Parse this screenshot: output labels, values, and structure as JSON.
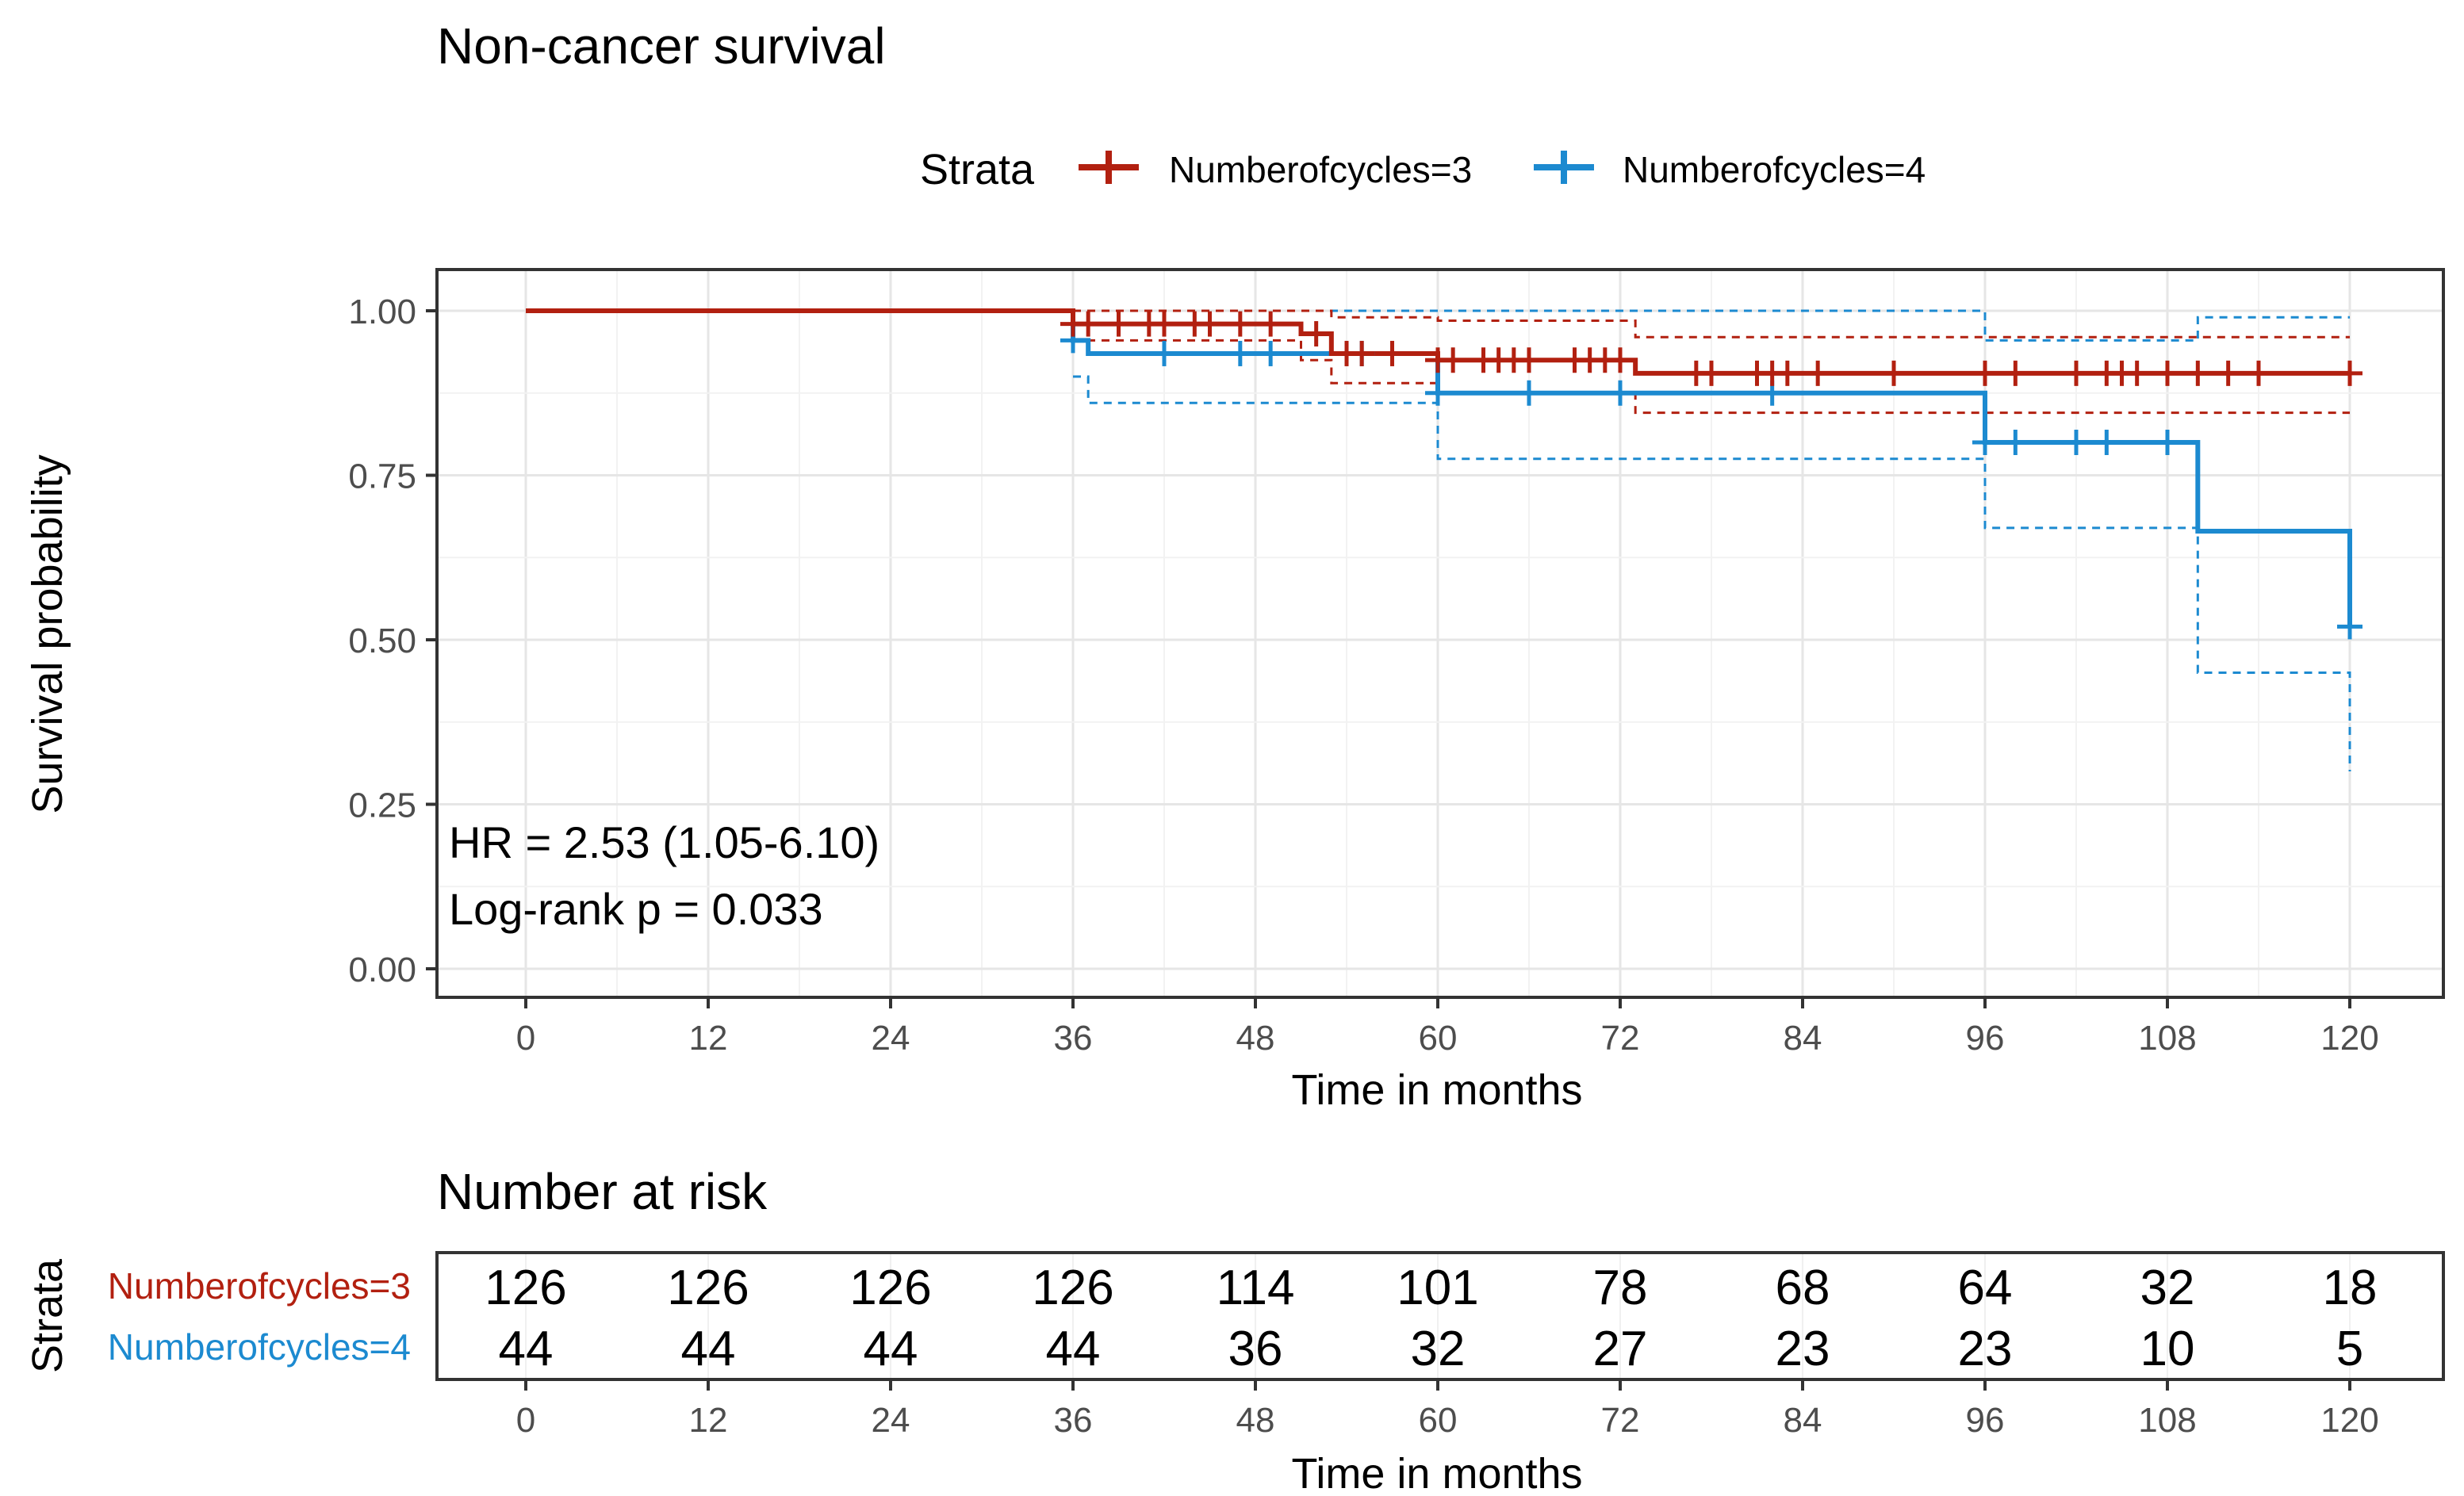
{
  "title": "Non-cancer survival",
  "legend": {
    "title": "Strata",
    "entries": [
      "Numberofcycles=3",
      "Numberofcycles=4"
    ]
  },
  "colors": {
    "cycles3": "#b22010",
    "cycles4": "#1c8ad0"
  },
  "annotations": {
    "hr": "HR = 2.53 (1.05-6.10)",
    "logrank": "Log-rank p = 0.033"
  },
  "chart_data": {
    "type": "line",
    "subtype": "kaplan-meier step curve with 95% CI and censor marks",
    "title": "Non-cancer survival",
    "xlabel": "Time in months",
    "ylabel": "Survival probability",
    "xlim": [
      0,
      120
    ],
    "ylim": [
      0,
      1
    ],
    "xticks": [
      0,
      12,
      24,
      36,
      48,
      60,
      72,
      84,
      96,
      108,
      120
    ],
    "xtick_labels": [
      "0",
      "12",
      "24",
      "36",
      "48",
      "60",
      "72",
      "84",
      "96",
      "108",
      "120"
    ],
    "yticks": [
      0,
      0.25,
      0.5,
      0.75,
      1.0
    ],
    "ytick_labels": [
      "0.00",
      "0.25",
      "0.50",
      "0.75",
      "1.00"
    ],
    "legend_position": "top",
    "series": [
      {
        "name": "Numberofcycles=3",
        "color_key": "cycles3",
        "steps": [
          [
            0,
            1.0
          ],
          [
            36,
            0.98
          ],
          [
            51,
            0.965
          ],
          [
            53,
            0.935
          ],
          [
            60,
            0.925
          ],
          [
            73,
            0.905
          ],
          [
            120,
            0.905
          ]
        ],
        "ci_upper": [
          [
            36,
            1.0
          ],
          [
            51,
            1.0
          ],
          [
            53,
            0.99
          ],
          [
            60,
            0.985
          ],
          [
            73,
            0.96
          ],
          [
            120,
            0.96
          ]
        ],
        "ci_lower": [
          [
            36,
            0.955
          ],
          [
            51,
            0.925
          ],
          [
            53,
            0.89
          ],
          [
            60,
            0.875
          ],
          [
            73,
            0.845
          ],
          [
            120,
            0.845
          ]
        ],
        "censor_times": [
          36,
          37,
          39,
          41,
          42,
          44,
          45,
          47,
          49,
          52,
          54,
          55,
          57,
          60,
          61,
          63,
          64,
          65,
          66,
          69,
          70,
          71,
          72,
          77,
          78,
          81,
          82,
          83,
          85,
          90,
          96,
          98,
          102,
          104,
          105,
          106,
          108,
          110,
          112,
          114,
          120
        ]
      },
      {
        "name": "Numberofcycles=4",
        "color_key": "cycles4",
        "steps": [
          [
            0,
            1.0
          ],
          [
            36,
            0.955
          ],
          [
            37,
            0.935
          ],
          [
            60,
            0.875
          ],
          [
            96,
            0.8
          ],
          [
            110,
            0.665
          ],
          [
            120,
            0.52
          ]
        ],
        "ci_upper": [
          [
            36,
            1.0
          ],
          [
            60,
            1.0
          ],
          [
            96,
            0.955
          ],
          [
            110,
            0.99
          ],
          [
            120,
            0.99
          ]
        ],
        "ci_lower": [
          [
            36,
            0.9
          ],
          [
            37,
            0.86
          ],
          [
            60,
            0.775
          ],
          [
            96,
            0.67
          ],
          [
            110,
            0.45
          ],
          [
            120,
            0.3
          ]
        ],
        "censor_times": [
          36,
          42,
          47,
          49,
          55,
          60,
          66,
          72,
          82,
          96,
          98,
          102,
          104,
          108,
          120
        ]
      }
    ],
    "risk_table": {
      "title": "Number at risk",
      "ylabel": "Strata",
      "xlabel": "Time in months",
      "times": [
        0,
        12,
        24,
        36,
        48,
        60,
        72,
        84,
        96,
        108,
        120
      ],
      "rows": [
        {
          "name": "Numberofcycles=3",
          "color_key": "cycles3",
          "values": [
            126,
            126,
            126,
            126,
            114,
            101,
            78,
            68,
            64,
            32,
            18
          ]
        },
        {
          "name": "Numberofcycles=4",
          "color_key": "cycles4",
          "values": [
            44,
            44,
            44,
            44,
            36,
            32,
            27,
            23,
            23,
            10,
            5
          ]
        }
      ]
    }
  }
}
